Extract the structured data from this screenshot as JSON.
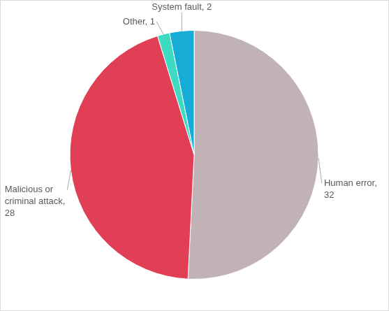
{
  "chart_data": {
    "type": "pie",
    "categories": [
      "Human error",
      "Malicious or criminal attack",
      "Other",
      "System fault"
    ],
    "values": [
      32,
      28,
      1,
      2
    ],
    "colors": [
      "#c0b2b5",
      "#e03f56",
      "#3ddbc2",
      "#17acd6"
    ],
    "data_labels": true,
    "value_labels": [
      "Human error, 32",
      "Malicious or criminal attack, 28",
      "Other, 1",
      "System fault, 2"
    ]
  }
}
